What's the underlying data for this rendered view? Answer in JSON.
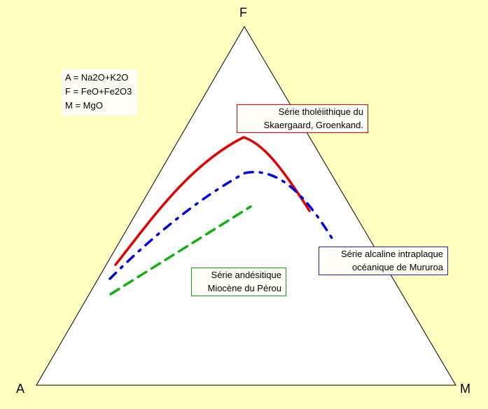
{
  "vertices": {
    "top": "F",
    "left": "A",
    "right": "M"
  },
  "legend": {
    "lines": [
      "A = Na2O+K2O",
      "F = FeO+Fe2O3",
      "M = MgO"
    ]
  },
  "series": [
    {
      "lines": [
        "Série tholéiithique du",
        "Skaergaard, Groenkand."
      ],
      "color": "#e00000",
      "style": "solid"
    },
    {
      "lines": [
        "Série alcaline intraplaque",
        "océanique de Mururoa"
      ],
      "color": "#0000e0",
      "style": "dash-dot"
    },
    {
      "lines": [
        "Série andésitique",
        "Miocène du Pérou"
      ],
      "color": "#10b010",
      "style": "dashed"
    }
  ],
  "colors": {
    "background": "#ffffc0",
    "triangle_fill": "#ffffff",
    "triangle_stroke": "#000000"
  }
}
